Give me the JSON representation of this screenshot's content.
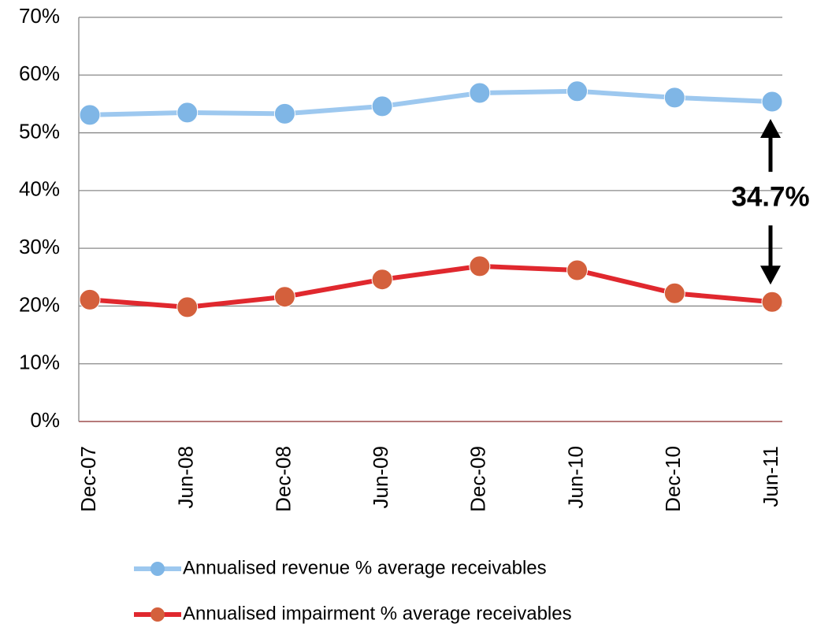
{
  "chart_data": {
    "type": "line",
    "categories": [
      "Dec-07",
      "Jun-08",
      "Dec-08",
      "Jun-09",
      "Dec-09",
      "Jun-10",
      "Dec-10",
      "Jun-11"
    ],
    "series": [
      {
        "name": "Annualised revenue % average receivables",
        "color": "#9dc8ef",
        "marker_color": "#7fb6e6",
        "values": [
          53.1,
          53.5,
          53.3,
          54.6,
          56.9,
          57.2,
          56.1,
          55.4
        ]
      },
      {
        "name": "Annualised impairment % average receivables",
        "color": "#e0282e",
        "marker_color": "#d4603c",
        "values": [
          21.1,
          19.8,
          21.6,
          24.6,
          26.9,
          26.2,
          22.2,
          20.7
        ]
      }
    ],
    "ylim": [
      0,
      70
    ],
    "yticks": [
      {
        "value": 0,
        "label": "0%"
      },
      {
        "value": 10,
        "label": "10%"
      },
      {
        "value": 20,
        "label": "20%"
      },
      {
        "value": 30,
        "label": "30%"
      },
      {
        "value": 40,
        "label": "40%"
      },
      {
        "value": 50,
        "label": "50%"
      },
      {
        "value": 60,
        "label": "60%"
      },
      {
        "value": 70,
        "label": "70%"
      }
    ],
    "grid": true,
    "legend": "bottom",
    "annotation": "34.7%"
  }
}
